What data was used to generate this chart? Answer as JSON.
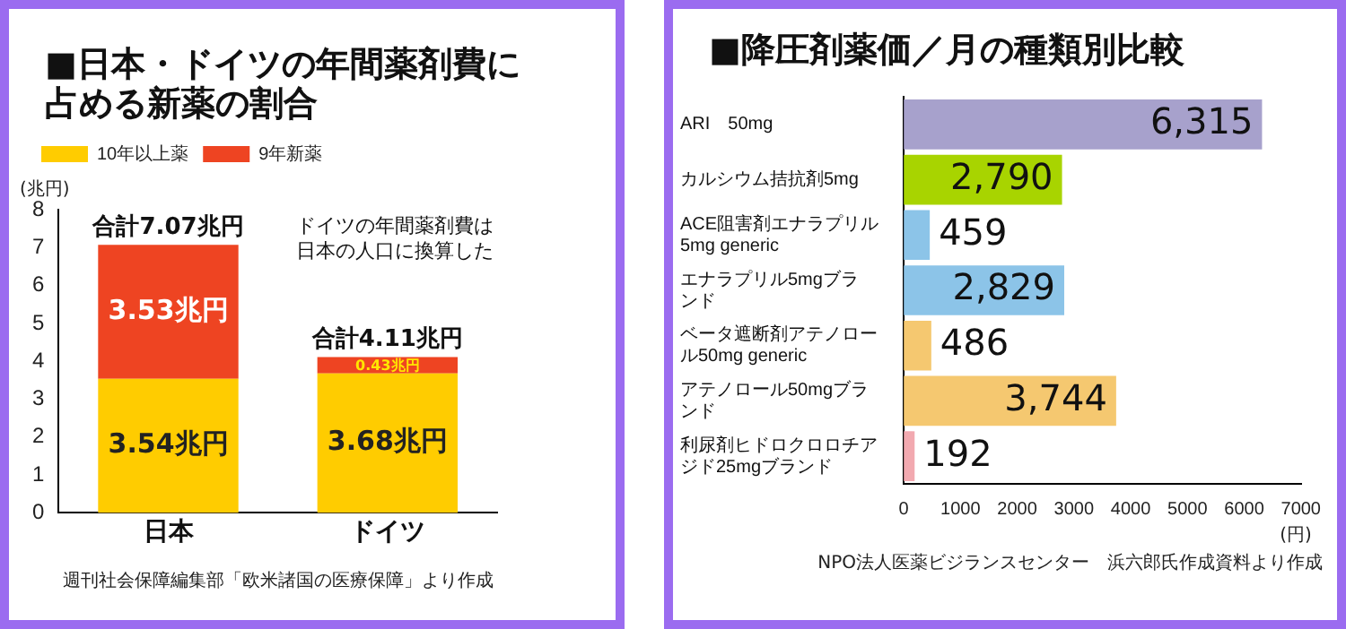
{
  "chart_data": [
    {
      "type": "bar",
      "title": "■日本・ドイツの年間薬剤費に占める新薬の割合",
      "ylabel": "(兆円)",
      "categories": [
        "日本",
        "ドイツ"
      ],
      "stacked": true,
      "series": [
        {
          "name": "10年以上薬",
          "color": "#ffcc00",
          "values": [
            3.54,
            3.68
          ],
          "value_labels": [
            "3.54兆円",
            "3.68兆円"
          ]
        },
        {
          "name": "9年新薬",
          "color": "#ee4422",
          "values": [
            3.53,
            0.43
          ],
          "value_labels": [
            "3.53兆円",
            "0.43兆円"
          ]
        }
      ],
      "totals": [
        "合計7.07兆円",
        "合計4.11兆円"
      ],
      "ylim": [
        0,
        8
      ],
      "yticks": [
        0,
        1,
        2,
        3,
        4,
        5,
        6,
        7,
        8
      ],
      "grid": false,
      "legend": "top left",
      "annotations": [
        "ドイツの年間薬剤費は日本の人口に換算した",
        "週刊社会保障編集部「欧米諸国の医療保障」より作成"
      ]
    },
    {
      "type": "bar",
      "orientation": "horizontal",
      "title": "■降圧剤薬価／月の種類別比較",
      "xlabel": "(円)",
      "categories": [
        "ARI　50mg",
        "カルシウム拮抗剤5mg",
        "ACE阻害剤エナラプリル5mg generic",
        "エナラプリル5mgブランド",
        "ベータ遮断剤アテノロール50mg generic",
        "アテノロール50mgブランド",
        "利尿剤ヒドロクロロチアジド25mgブランド"
      ],
      "values": [
        6315,
        2790,
        459,
        2829,
        486,
        3744,
        192
      ],
      "value_labels": [
        "6,315",
        "2,790",
        "459",
        "2,829",
        "486",
        "3,744",
        "192"
      ],
      "colors": [
        "#a7a1cc",
        "#a8d400",
        "#8cc4e8",
        "#8cc4e8",
        "#f5c870",
        "#f5c870",
        "#f2a9b0"
      ],
      "xlim": [
        0,
        7000
      ],
      "xticks": [
        0,
        1000,
        2000,
        3000,
        4000,
        5000,
        6000,
        7000
      ],
      "grid": false,
      "annotations": [
        "NPO法人医薬ビジランスセンター　浜六郎氏作成資料より作成"
      ]
    }
  ]
}
